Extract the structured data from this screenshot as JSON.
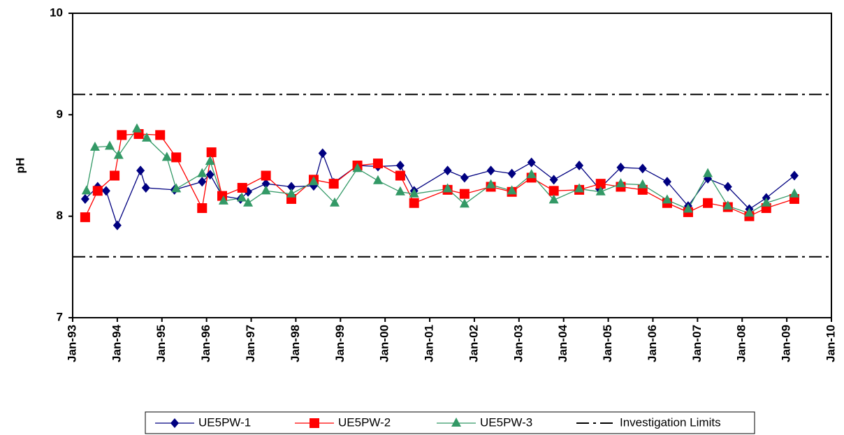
{
  "chart_data": {
    "type": "line",
    "y_label": "pH",
    "xlim": [
      1993,
      2010
    ],
    "xticks": [
      {
        "value": 1993,
        "label": "Jan-93"
      },
      {
        "value": 1994,
        "label": "Jan-94"
      },
      {
        "value": 1995,
        "label": "Jan-95"
      },
      {
        "value": 1996,
        "label": "Jan-96"
      },
      {
        "value": 1997,
        "label": "Jan-97"
      },
      {
        "value": 1998,
        "label": "Jan-98"
      },
      {
        "value": 1999,
        "label": "Jan-99"
      },
      {
        "value": 2000,
        "label": "Jan-00"
      },
      {
        "value": 2001,
        "label": "Jan-01"
      },
      {
        "value": 2002,
        "label": "Jan-02"
      },
      {
        "value": 2003,
        "label": "Jan-03"
      },
      {
        "value": 2004,
        "label": "Jan-04"
      },
      {
        "value": 2005,
        "label": "Jan-05"
      },
      {
        "value": 2006,
        "label": "Jan-06"
      },
      {
        "value": 2007,
        "label": "Jan-07"
      },
      {
        "value": 2008,
        "label": "Jan-08"
      },
      {
        "value": 2009,
        "label": "Jan-09"
      },
      {
        "value": 2010,
        "label": "Jan-10"
      }
    ],
    "ylim": [
      7,
      10
    ],
    "yticks": [
      7,
      8,
      9,
      10
    ],
    "series": [
      {
        "name": "UE5PW-1",
        "color": "#000080",
        "marker": "diamond",
        "x": [
          1993.28,
          1993.56,
          1993.75,
          1994.0,
          1994.52,
          1994.64,
          1995.28,
          1995.9,
          1996.08,
          1996.35,
          1996.76,
          1996.93,
          1997.33,
          1997.9,
          1998.4,
          1998.6,
          1998.85,
          1999.38,
          1999.84,
          2000.34,
          2000.65,
          2001.4,
          2001.78,
          2002.37,
          2002.84,
          2003.28,
          2003.78,
          2004.35,
          2004.8,
          2005.28,
          2005.77,
          2006.32,
          2006.79,
          2007.23,
          2007.68,
          2008.16,
          2008.54,
          2009.17
        ],
        "values": [
          8.17,
          8.29,
          8.25,
          7.91,
          8.45,
          8.28,
          8.26,
          8.34,
          8.41,
          8.2,
          8.17,
          8.24,
          8.32,
          8.29,
          8.3,
          8.62,
          8.33,
          8.5,
          8.49,
          8.5,
          8.25,
          8.45,
          8.38,
          8.45,
          8.42,
          8.53,
          8.36,
          8.5,
          8.27,
          8.48,
          8.47,
          8.34,
          8.1,
          8.37,
          8.29,
          8.07,
          8.18,
          8.4
        ]
      },
      {
        "name": "UE5PW-2",
        "color": "#ff0000",
        "marker": "square",
        "x": [
          1993.28,
          1993.56,
          1993.94,
          1994.1,
          1994.48,
          1994.96,
          1995.32,
          1995.9,
          1996.11,
          1996.35,
          1996.8,
          1997.33,
          1997.9,
          1998.4,
          1998.85,
          1999.38,
          1999.84,
          2000.34,
          2000.65,
          2001.4,
          2001.78,
          2002.37,
          2002.84,
          2003.28,
          2003.78,
          2004.35,
          2004.83,
          2005.28,
          2005.77,
          2006.32,
          2006.79,
          2007.23,
          2007.68,
          2008.16,
          2008.54,
          2009.17
        ],
        "values": [
          7.99,
          8.25,
          8.4,
          8.8,
          8.81,
          8.8,
          8.58,
          8.08,
          8.63,
          8.2,
          8.28,
          8.4,
          8.17,
          8.36,
          8.32,
          8.5,
          8.52,
          8.4,
          8.13,
          8.26,
          8.22,
          8.29,
          8.24,
          8.38,
          8.25,
          8.26,
          8.32,
          8.29,
          8.26,
          8.13,
          8.04,
          8.13,
          8.09,
          8.0,
          8.08,
          8.17
        ]
      },
      {
        "name": "UE5PW-3",
        "color": "#339966",
        "marker": "triangle",
        "x": [
          1993.31,
          1993.5,
          1993.83,
          1994.03,
          1994.44,
          1994.66,
          1995.11,
          1995.32,
          1995.9,
          1996.08,
          1996.38,
          1996.79,
          1996.93,
          1997.33,
          1997.9,
          1998.4,
          1998.87,
          1999.38,
          1999.84,
          2000.34,
          2000.65,
          2001.4,
          2001.78,
          2002.37,
          2002.84,
          2003.28,
          2003.78,
          2004.35,
          2004.83,
          2005.28,
          2005.77,
          2006.32,
          2006.79,
          2007.23,
          2007.68,
          2008.16,
          2008.54,
          2009.17
        ],
        "values": [
          8.25,
          8.68,
          8.69,
          8.6,
          8.86,
          8.77,
          8.58,
          8.27,
          8.42,
          8.54,
          8.15,
          8.18,
          8.13,
          8.25,
          8.22,
          8.34,
          8.13,
          8.47,
          8.35,
          8.24,
          8.22,
          8.27,
          8.12,
          8.31,
          8.25,
          8.41,
          8.16,
          8.27,
          8.24,
          8.32,
          8.31,
          8.16,
          8.07,
          8.42,
          8.1,
          8.03,
          8.13,
          8.22
        ]
      }
    ],
    "limits": {
      "name": "Investigation Limits",
      "color": "#000000",
      "values": [
        9.2,
        7.6
      ]
    }
  }
}
